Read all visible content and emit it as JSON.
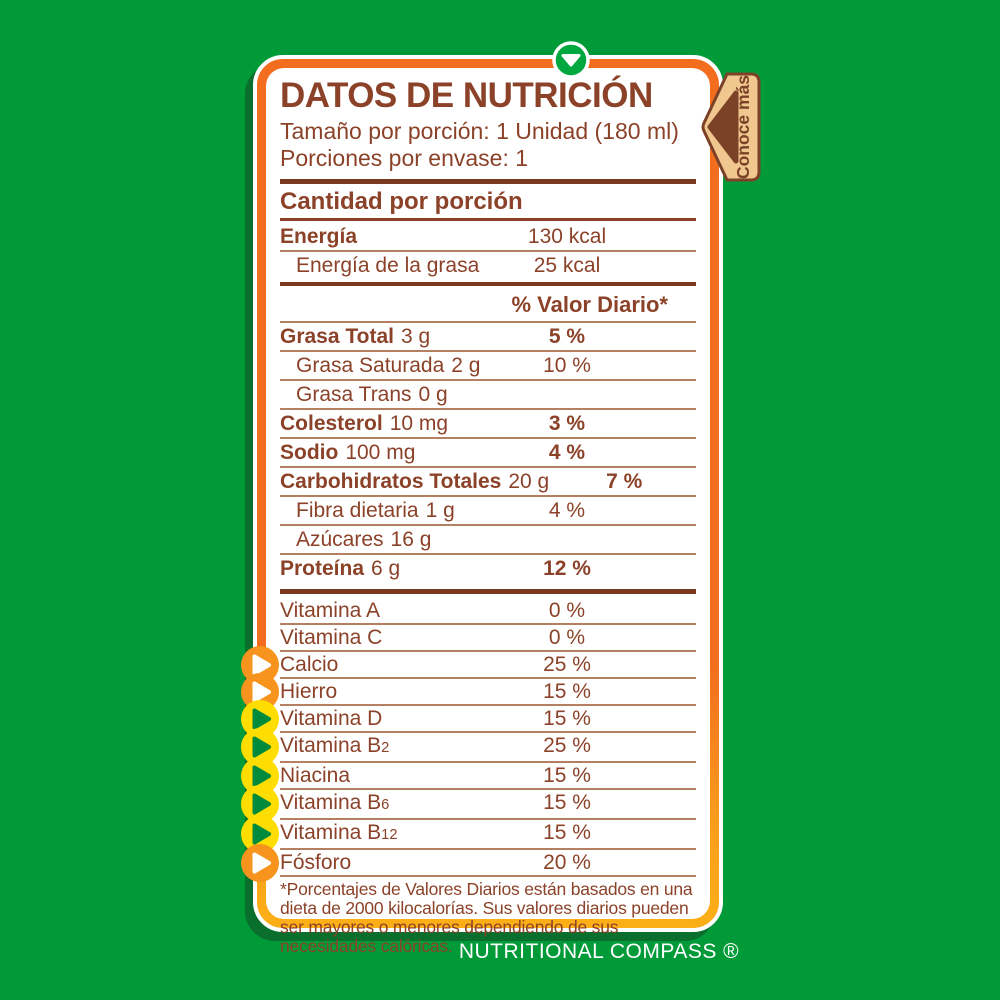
{
  "colors": {
    "background_green": "#019A38",
    "shadow_green": "#0A6E2D",
    "border_orange": "#F26E1E",
    "border_gold": "#FCAF17",
    "panel_white": "#FFFFFF",
    "text_brown": "#8B4228",
    "line_thin": "#B57F61",
    "line_thick": "#7B3A20",
    "icon_orange": "#F7941E",
    "icon_yellow": "#FFDD00",
    "icon_triangle_green": "#008A3C",
    "icon_triangle_white": "#FFFFFF",
    "tab_tan": "#EFC78F",
    "tab_brown": "#7B4227",
    "top_circle_green": "#00A83F"
  },
  "header": {
    "title": "DATOS DE NUTRICIÓN",
    "serving_size": "Tamaño por porción: 1 Unidad (180 ml)",
    "servings_per_package": "Porciones por envase: 1"
  },
  "amount_section": {
    "heading": "Cantidad por porción",
    "rows": [
      {
        "name": "Energía",
        "bold": true,
        "dv": "130 kcal"
      },
      {
        "name": "Energía de la grasa",
        "bold": false,
        "indent": true,
        "dv": "25 kcal"
      }
    ]
  },
  "daily_value_section": {
    "header": "% Valor Diario*",
    "rows": [
      {
        "name": "Grasa Total",
        "amount": "3 g",
        "bold": true,
        "dv": "5 %",
        "dv_bold": true
      },
      {
        "name": "Grasa Saturada",
        "amount": "2 g",
        "indent": true,
        "dv": "10 %"
      },
      {
        "name": "Grasa Trans",
        "amount": "0 g",
        "indent": true,
        "dv": ""
      },
      {
        "name": "Colesterol",
        "amount": "10 mg",
        "bold": true,
        "dv": "3 %",
        "dv_bold": true
      },
      {
        "name": "Sodio",
        "amount": "100 mg",
        "bold": true,
        "dv": "4 %",
        "dv_bold": true
      },
      {
        "name": "Carbohidratos Totales",
        "amount": "20 g",
        "bold": true,
        "dv": "7 %",
        "dv_bold": true
      },
      {
        "name": "Fibra dietaria",
        "amount": "1 g",
        "indent": true,
        "dv": "4 %"
      },
      {
        "name": "Azúcares",
        "amount": "16 g",
        "indent": true,
        "dv": ""
      },
      {
        "name": "Proteína",
        "amount": "6 g",
        "bold": true,
        "dv": "12 %",
        "dv_bold": true
      }
    ]
  },
  "micronutrient_section": {
    "rows": [
      {
        "name": "Vitamina A",
        "dv": "0 %"
      },
      {
        "name": "Vitamina C",
        "dv": "0 %"
      },
      {
        "name": "Calcio",
        "dv": "25 %",
        "icon": "orange"
      },
      {
        "name": "Hierro",
        "dv": "15 %",
        "icon": "orange"
      },
      {
        "name": "Vitamina D",
        "dv": "15 %",
        "icon": "yellow"
      },
      {
        "name": "Vitamina B",
        "sub": "2",
        "dv": "25 %",
        "icon": "yellow"
      },
      {
        "name": "Niacina",
        "dv": "15 %",
        "icon": "yellow"
      },
      {
        "name": "Vitamina B",
        "sub": "6",
        "dv": "15 %",
        "icon": "yellow"
      },
      {
        "name": "Vitamina B",
        "sub": "12",
        "dv": "15 %",
        "icon": "yellow"
      },
      {
        "name": "Fósforo",
        "dv": "20 %",
        "icon": "orange"
      }
    ]
  },
  "footnote": "*Porcentajes de Valores Diarios están basados en una dieta de 2000 kilocalorías. Sus valores diarios pueden ser mayores o menores dependiendo de sus necesidades calóricas.",
  "side_tab": {
    "label": "Conoce más"
  },
  "footer": {
    "brand": "NUTRITIONAL COMPASS ®"
  },
  "icons": {
    "top_indicator": "chevron-down-icon",
    "row_bullet": "triangle-right-icon",
    "tab_arrow": "arrow-left-icon"
  }
}
